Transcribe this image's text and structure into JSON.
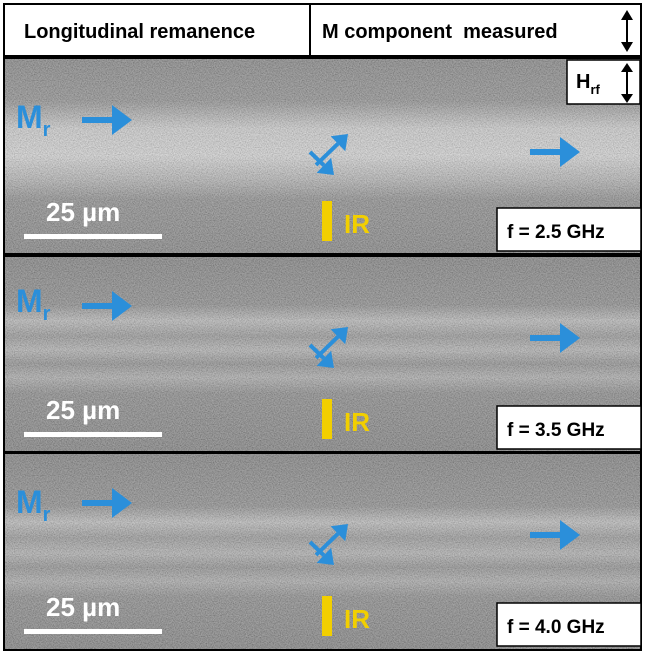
{
  "header": {
    "left": "Longitudinal remanence",
    "right": "M component  measured"
  },
  "field_label": {
    "main": "H",
    "sub": "rf"
  },
  "panels": [
    {
      "magnetization": {
        "main": "M",
        "sub": "r"
      },
      "scale_bar": "25 µm",
      "ir_marker": "IR",
      "frequency": "f = 2.5 GHz"
    },
    {
      "magnetization": {
        "main": "M",
        "sub": "r"
      },
      "scale_bar": "25 µm",
      "ir_marker": "IR",
      "frequency": "f = 3.5 GHz"
    },
    {
      "magnetization": {
        "main": "M",
        "sub": "r"
      },
      "scale_bar": "25 µm",
      "ir_marker": "IR",
      "frequency": "f = 4.0 GHz"
    }
  ]
}
